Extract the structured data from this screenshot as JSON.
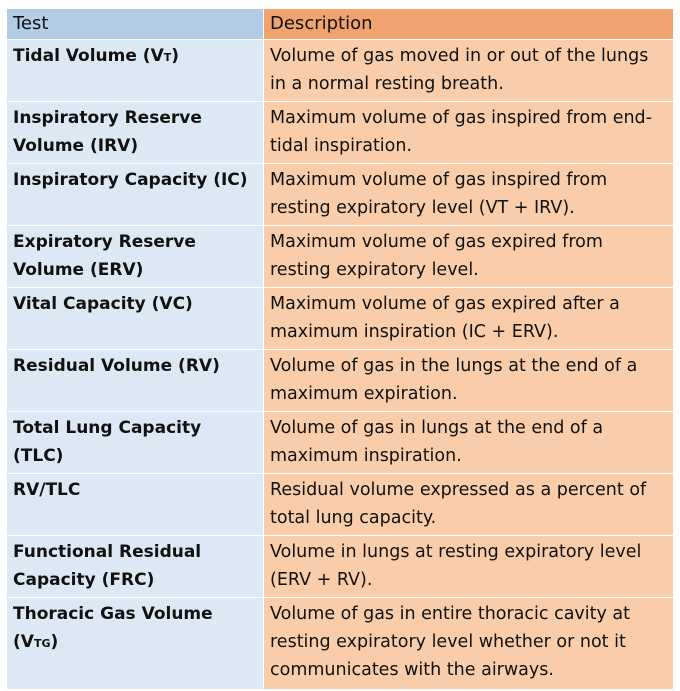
{
  "table": {
    "headers": {
      "test": "Test",
      "description": "Description"
    },
    "rows": [
      {
        "test": "Tidal Volume (V",
        "test_sub": "T",
        "test_suffix": ")",
        "description": "Volume of gas moved in or out of the lungs in a normal resting breath."
      },
      {
        "test": "Inspiratory Reserve Volume (IRV)",
        "test_sub": "",
        "test_suffix": "",
        "description": "Maximum volume of gas inspired from end-tidal inspiration."
      },
      {
        "test": "Inspiratory Capacity (IC)",
        "test_sub": "",
        "test_suffix": "",
        "description": "Maximum volume of gas inspired from resting expiratory level (VT + IRV)."
      },
      {
        "test": "Expiratory Reserve Volume (ERV)",
        "test_sub": "",
        "test_suffix": "",
        "description": "Maximum volume of gas expired from resting expiratory level."
      },
      {
        "test": "Vital Capacity (VC)",
        "test_sub": "",
        "test_suffix": "",
        "description": "Maximum volume of gas expired after a maximum inspiration (IC + ERV)."
      },
      {
        "test": "Residual Volume (RV)",
        "test_sub": "",
        "test_suffix": "",
        "description": "Volume of gas in the lungs at the end of a maximum expiration."
      },
      {
        "test": "Total Lung Capacity (TLC)",
        "test_sub": "",
        "test_suffix": "",
        "description": "Volume of gas in lungs at the end of a maximum inspiration."
      },
      {
        "test": "RV/TLC",
        "test_sub": "",
        "test_suffix": "",
        "description": "Residual volume expressed as a percent of total lung capacity."
      },
      {
        "test": "Functional Residual Capacity (FRC)",
        "test_sub": "",
        "test_suffix": "",
        "description": "Volume in lungs at resting expiratory level (ERV + RV)."
      },
      {
        "test": "Thoracic Gas Volume (V",
        "test_sub": "TG",
        "test_suffix": ")",
        "description": "Volume of gas in entire thoracic cavity at resting expiratory level whether or not it communicates with the airways."
      }
    ]
  }
}
